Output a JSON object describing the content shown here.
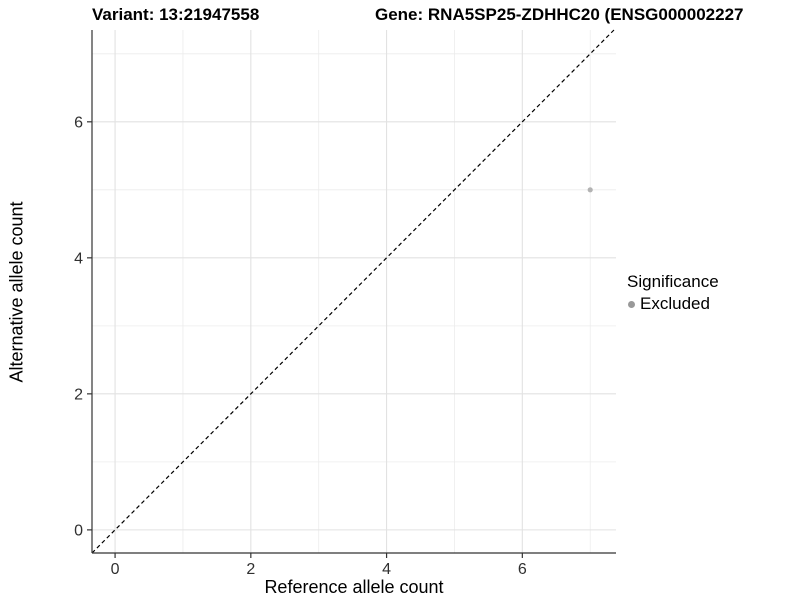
{
  "chart_data": {
    "type": "scatter",
    "title_left": "Variant: 13:21947558",
    "title_right": "Gene: RNA5SP25-ZDHHC20 (ENSG000002227",
    "xlabel": "Reference allele count",
    "ylabel": "Alternative allele count",
    "xlim": [
      -0.34,
      7.38
    ],
    "ylim": [
      -0.34,
      7.35
    ],
    "x_ticks": [
      0,
      2,
      4,
      6
    ],
    "y_ticks": [
      0,
      2,
      4,
      6
    ],
    "x_minor_ticks": [
      1,
      3,
      5,
      7
    ],
    "y_minor_ticks": [
      1,
      3,
      5,
      7
    ],
    "grid": true,
    "reference_line": {
      "equation": "y = x",
      "style": "dashed",
      "color": "#000000"
    },
    "series": [
      {
        "name": "Excluded",
        "color": "#b3b3b3",
        "points": [
          {
            "x": 7,
            "y": 5
          }
        ]
      }
    ],
    "legend": {
      "title": "Significance",
      "position": "right",
      "items": [
        {
          "label": "Excluded",
          "color": "#999999"
        }
      ]
    },
    "colors": {
      "major_grid": "#e2e2e2",
      "minor_grid": "#ececec",
      "axis_line": "#333333",
      "tick_label": "#303030"
    }
  }
}
